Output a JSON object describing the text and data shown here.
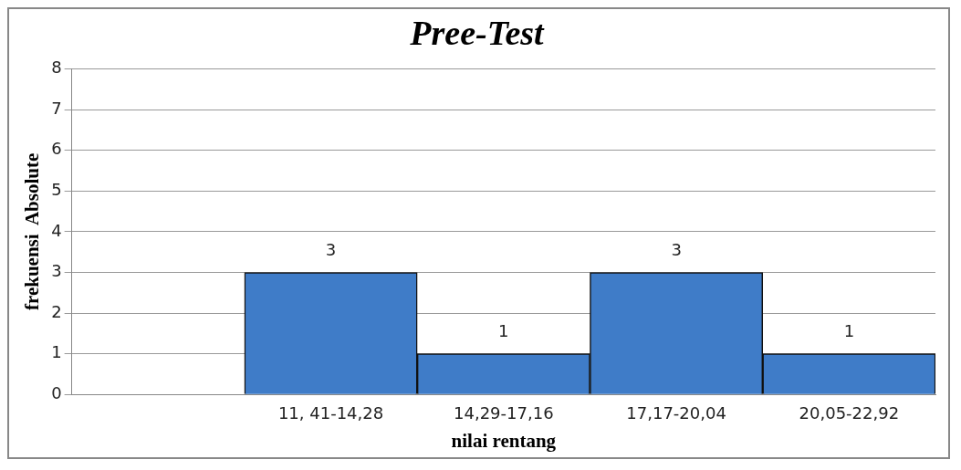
{
  "chart_data": {
    "type": "bar",
    "title": "Pree-Test",
    "xlabel": "nilai rentang",
    "ylabel": "frekuensi  Absolute",
    "categories": [
      null,
      "11, 41-14,28",
      "14,29-17,16",
      "17,17-20,04",
      "20,05-22,92"
    ],
    "values": [
      null,
      3,
      1,
      3,
      1
    ],
    "color": "#3f7cc8",
    "ylim": [
      0,
      8
    ],
    "yticks": [
      0,
      1,
      2,
      3,
      4,
      5,
      6,
      7,
      8
    ],
    "grid": "y",
    "data_labels": true,
    "legend": false
  }
}
